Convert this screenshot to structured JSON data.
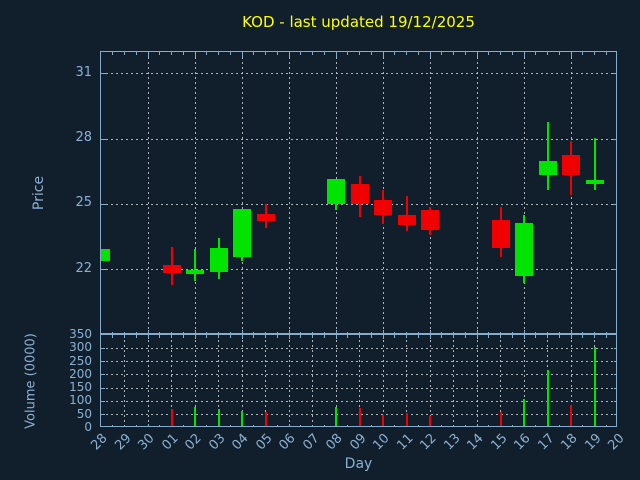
{
  "title": {
    "text": "KOD - last updated 19/12/2025"
  },
  "labels": {
    "x": "Day"
  },
  "colors": {
    "background": "#111f2d",
    "axis": "#84accd",
    "tick_label": "#8ab1d1",
    "grid": "#c9ced2",
    "up": "#00e400",
    "down": "#f00000",
    "title": "#ffff00"
  },
  "price_panel": {
    "ylabel": "Price",
    "ymin": 19,
    "ymax": 32,
    "yticks": [
      22,
      25,
      28,
      31
    ],
    "vertical_grid_every_days": 2
  },
  "volume_panel": {
    "ylabel": "Volume (0000)",
    "ymin": 0,
    "ymax": 350,
    "ytick_labels": [
      0,
      50,
      100,
      150,
      200,
      250,
      300,
      350
    ],
    "grid_values": [
      50,
      100,
      150,
      200,
      250,
      300
    ],
    "vertical_grid_every_days": 1
  },
  "chart_data": {
    "type": "candlestick_with_volume",
    "xlabel": "Day",
    "x_categories": [
      "28",
      "29",
      "30",
      "01",
      "02",
      "03",
      "04",
      "05",
      "06",
      "07",
      "08",
      "09",
      "10",
      "11",
      "12",
      "13",
      "14",
      "15",
      "16",
      "17",
      "18",
      "19",
      "20"
    ],
    "candles": [
      {
        "day": "28",
        "open": 22.4,
        "high": 22.95,
        "low": 22.4,
        "close": 22.95,
        "direction": "up"
      },
      {
        "day": "01",
        "open": 22.2,
        "high": 23.05,
        "low": 21.3,
        "close": 21.85,
        "direction": "down"
      },
      {
        "day": "02",
        "open": 21.8,
        "high": 22.95,
        "low": 21.5,
        "close": 22.0,
        "direction": "up"
      },
      {
        "day": "03",
        "open": 21.9,
        "high": 23.45,
        "low": 21.55,
        "close": 23.0,
        "direction": "up"
      },
      {
        "day": "04",
        "open": 22.6,
        "high": 24.8,
        "low": 22.4,
        "close": 24.8,
        "direction": "up"
      },
      {
        "day": "05",
        "open": 24.55,
        "high": 25.0,
        "low": 23.9,
        "close": 24.25,
        "direction": "down"
      },
      {
        "day": "08",
        "open": 25.0,
        "high": 26.15,
        "low": 24.75,
        "close": 26.15,
        "direction": "up"
      },
      {
        "day": "09",
        "open": 25.95,
        "high": 26.3,
        "low": 24.4,
        "close": 25.0,
        "direction": "down"
      },
      {
        "day": "10",
        "open": 25.2,
        "high": 25.65,
        "low": 24.1,
        "close": 24.5,
        "direction": "down"
      },
      {
        "day": "11",
        "open": 24.5,
        "high": 25.4,
        "low": 23.8,
        "close": 24.05,
        "direction": "down"
      },
      {
        "day": "12",
        "open": 24.75,
        "high": 24.9,
        "low": 23.6,
        "close": 23.8,
        "direction": "down"
      },
      {
        "day": "15",
        "open": 24.3,
        "high": 24.9,
        "low": 22.6,
        "close": 23.0,
        "direction": "down"
      },
      {
        "day": "16",
        "open": 21.7,
        "high": 24.5,
        "low": 21.4,
        "close": 24.15,
        "direction": "up"
      },
      {
        "day": "17",
        "open": 26.35,
        "high": 28.8,
        "low": 25.65,
        "close": 27.0,
        "direction": "up"
      },
      {
        "day": "18",
        "open": 27.25,
        "high": 27.9,
        "low": 25.45,
        "close": 26.35,
        "direction": "down"
      },
      {
        "day": "19",
        "open": 25.95,
        "high": 28.05,
        "low": 25.65,
        "close": 26.1,
        "direction": "up"
      }
    ],
    "volume": [
      {
        "day": "01",
        "value": 70,
        "direction": "down"
      },
      {
        "day": "02",
        "value": 80,
        "direction": "up"
      },
      {
        "day": "03",
        "value": 70,
        "direction": "up"
      },
      {
        "day": "04",
        "value": 65,
        "direction": "up"
      },
      {
        "day": "05",
        "value": 60,
        "direction": "down"
      },
      {
        "day": "08",
        "value": 80,
        "direction": "up"
      },
      {
        "day": "09",
        "value": 75,
        "direction": "down"
      },
      {
        "day": "10",
        "value": 50,
        "direction": "down"
      },
      {
        "day": "11",
        "value": 55,
        "direction": "down"
      },
      {
        "day": "12",
        "value": 45,
        "direction": "down"
      },
      {
        "day": "15",
        "value": 60,
        "direction": "down"
      },
      {
        "day": "16",
        "value": 110,
        "direction": "up"
      },
      {
        "day": "17",
        "value": 220,
        "direction": "up"
      },
      {
        "day": "18",
        "value": 85,
        "direction": "down"
      },
      {
        "day": "19",
        "value": 305,
        "direction": "up"
      }
    ]
  }
}
